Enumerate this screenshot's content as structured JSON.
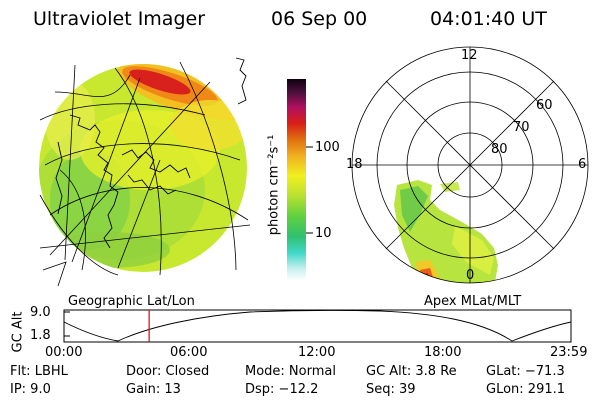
{
  "header": {
    "instrument": "Ultraviolet Imager",
    "date": "06 Sep 00",
    "time": "04:01:40 UT"
  },
  "colorbar": {
    "label": "photon cm⁻²s⁻¹",
    "ticks": [
      "100",
      "10"
    ]
  },
  "geo_panel": {
    "caption": "Geographic Lat/Lon"
  },
  "polar_panel": {
    "caption": "Apex MLat/MLT",
    "mlt_labels": {
      "top": "12",
      "left": "18",
      "right": "6",
      "bottom": "0"
    },
    "lat_labels": [
      "60",
      "70",
      "80"
    ]
  },
  "timeline": {
    "ylabel": "GC Alt",
    "yticks": [
      "9.0",
      "1.8"
    ],
    "xticks": [
      "00:00",
      "06:00",
      "12:00",
      "18:00",
      "23:59"
    ],
    "marker_hour": 4.03
  },
  "info": {
    "row1": {
      "flt": "Flt: LBHL",
      "door": "Door: Closed",
      "mode": "Mode: Normal",
      "gcalt": "GC Alt: 3.8 Re",
      "glat": "GLat: −71.3"
    },
    "row2": {
      "ip": "IP:  9.0",
      "gain": "Gain: 13",
      "dsp": "Dsp:  −12.2",
      "seq": "Seq: 39",
      "glon": "GLon: 291.1"
    }
  }
}
